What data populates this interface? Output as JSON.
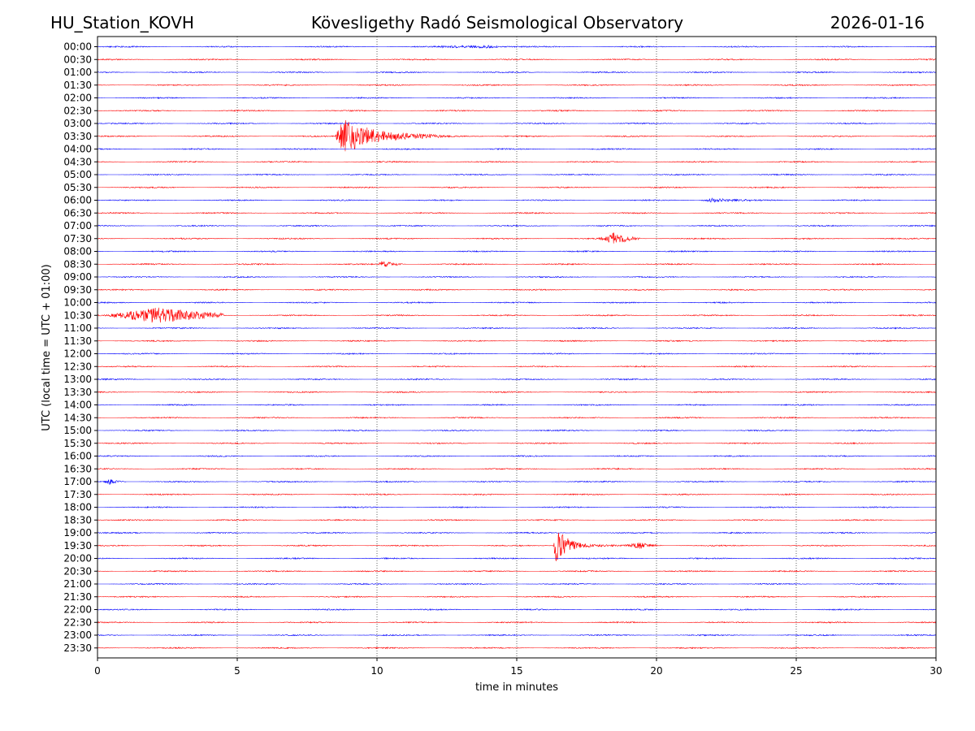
{
  "header": {
    "station": "HU_Station_KOVH",
    "observatory": "Kövesligethy Radó Seismological Observatory",
    "date": "2026-01-16"
  },
  "chart_data": {
    "type": "line",
    "title": "Kövesligethy Radó Seismological Observatory",
    "xlabel": "time in minutes",
    "ylabel": "UTC (local time = UTC + 01:00)",
    "xlim": [
      0,
      30
    ],
    "x_ticks": [
      0,
      5,
      10,
      15,
      20,
      25,
      30
    ],
    "grid": "vertical dotted lines at 5-minute intervals",
    "colors": {
      "even_rows": "#0000ff",
      "odd_rows": "#ff0000",
      "frame": "#000000",
      "grid": "#000000"
    },
    "rows": [
      "00:00",
      "00:30",
      "01:00",
      "01:30",
      "02:00",
      "02:30",
      "03:00",
      "03:30",
      "04:00",
      "04:30",
      "05:00",
      "05:30",
      "06:00",
      "06:30",
      "07:00",
      "07:30",
      "08:00",
      "08:30",
      "09:00",
      "09:30",
      "10:00",
      "10:30",
      "11:00",
      "11:30",
      "12:00",
      "12:30",
      "13:00",
      "13:30",
      "14:00",
      "14:30",
      "15:00",
      "15:30",
      "16:00",
      "16:30",
      "17:00",
      "17:30",
      "18:00",
      "18:30",
      "19:00",
      "19:30",
      "20:00",
      "20:30",
      "21:00",
      "21:30",
      "22:00",
      "22:30",
      "23:00",
      "23:30"
    ],
    "noise_amplitude": 0.8,
    "events": [
      {
        "row": "00:00",
        "start_min": 12.0,
        "peak_min": 14.0,
        "end_min": 18.0,
        "amplitude": 2.0,
        "decay": 0.4
      },
      {
        "row": "03:30",
        "start_min": 8.5,
        "peak_min": 8.8,
        "end_min": 13.8,
        "amplitude": 22,
        "decay": 1.2
      },
      {
        "row": "06:00",
        "start_min": 21.5,
        "peak_min": 22.0,
        "end_min": 23.8,
        "amplitude": 2.5,
        "decay": 0.7
      },
      {
        "row": "07:30",
        "start_min": 17.9,
        "peak_min": 18.5,
        "end_min": 19.4,
        "amplitude": 7,
        "decay": 0.5
      },
      {
        "row": "08:30",
        "start_min": 10.0,
        "peak_min": 10.2,
        "end_min": 11.0,
        "amplitude": 4,
        "decay": 0.4
      },
      {
        "row": "10:30",
        "start_min": 0.2,
        "peak_min": 2.2,
        "end_min": 4.5,
        "amplitude": 10,
        "decay": 1.5
      },
      {
        "row": "17:00",
        "start_min": 0.2,
        "peak_min": 0.4,
        "end_min": 1.0,
        "amplitude": 3.5,
        "decay": 0.3
      },
      {
        "row": "19:30",
        "start_min": 16.3,
        "peak_min": 16.4,
        "end_min": 18.8,
        "amplitude": 24,
        "decay": 0.45
      },
      {
        "row": "19:30",
        "start_min": 18.8,
        "peak_min": 19.4,
        "end_min": 20.2,
        "amplitude": 3.5,
        "decay": 0.5
      }
    ]
  }
}
